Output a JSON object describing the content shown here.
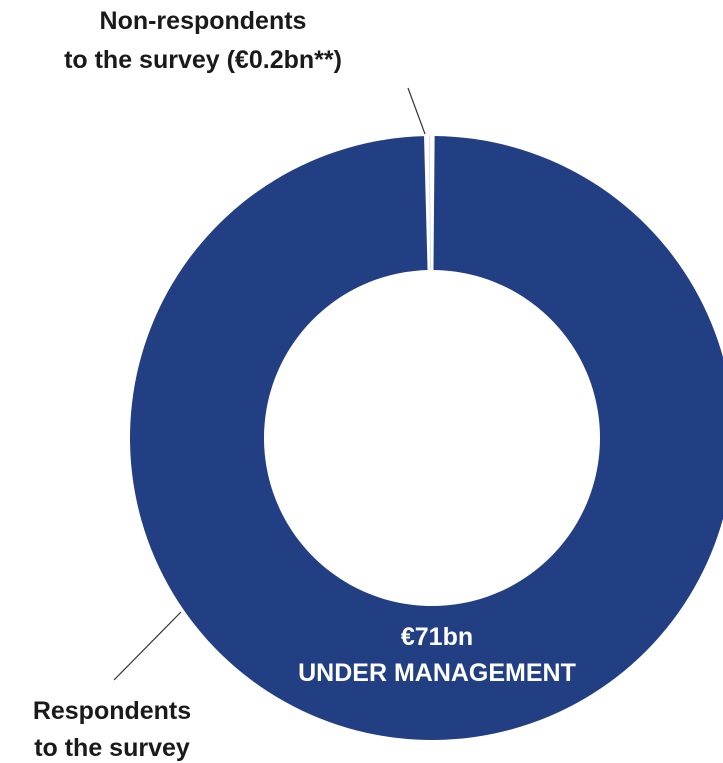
{
  "chart_data": {
    "type": "pie",
    "subtype": "donut",
    "title": "",
    "series": [
      {
        "labels": [
          "Respondents to the survey",
          "Non-respondents to the survey (€0.2bn**)"
        ],
        "values": [
          70.8,
          0.2
        ],
        "colors": [
          "#233f83",
          "#ffffff"
        ]
      }
    ],
    "annotations": {
      "non_respondents": [
        "Non-respondents",
        "to the survey (€0.2bn**)"
      ],
      "respondents": [
        "Respondents",
        "to the survey"
      ],
      "center_value": "€71bn",
      "center_caption": "UNDER MANAGEMENT"
    },
    "legend": false,
    "grid": false
  }
}
